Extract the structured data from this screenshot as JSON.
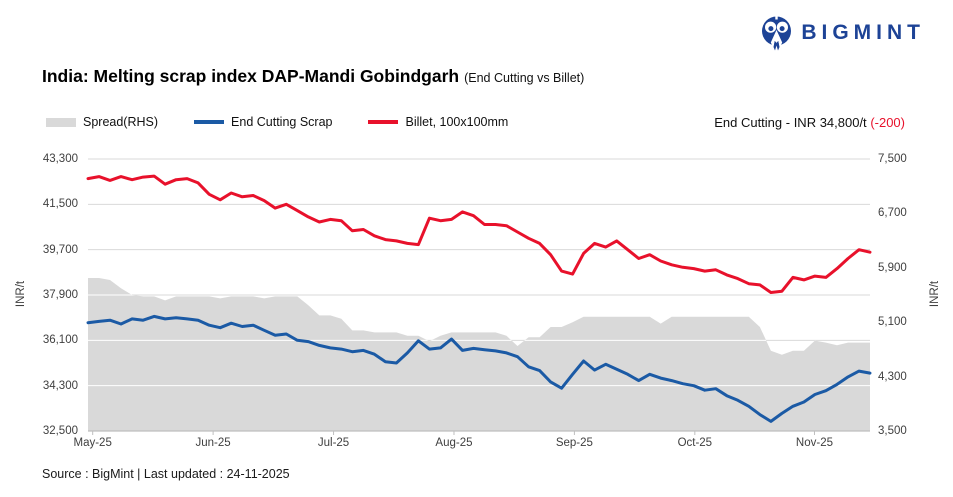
{
  "header": {
    "logo_text": "BIGMINT",
    "brand_color": "#1d4396"
  },
  "title": {
    "main": "India: Melting scrap index DAP-Mandi Gobindgarh",
    "sub": "(End Cutting vs Billet)"
  },
  "annotation": {
    "label": "End Cutting - INR 34,800/t",
    "change": "(-200)",
    "change_color": "#e8112b"
  },
  "footer": {
    "source": "Source : BigMint | Last updated : 24-11-2025"
  },
  "chart_data": {
    "type": "line",
    "title": "India: Melting scrap index DAP-Mandi Gobindgarh (End Cutting vs Billet)",
    "grid": true,
    "legend_position": "top-left",
    "gridline_color": "#d9d9d9",
    "axisline_color": "#bfbfbf",
    "left_axis": {
      "label": "INR/t",
      "min": 32500,
      "max": 43300,
      "ticks": [
        "43,300",
        "41,500",
        "39,700",
        "37,900",
        "36,100",
        "34,300",
        "32,500"
      ]
    },
    "right_axis": {
      "label": "INR/t",
      "min": 3500,
      "max": 7500,
      "ticks": [
        "7,500",
        "6,700",
        "5,900",
        "5,100",
        "4,300",
        "3,500"
      ]
    },
    "x_ticks": {
      "labels": [
        "May-25",
        "Jun-25",
        "Jul-25",
        "Aug-25",
        "Sep-25",
        "Oct-25",
        "Nov-25"
      ],
      "positions": [
        0.006,
        0.16,
        0.314,
        0.468,
        0.622,
        0.776,
        0.929
      ]
    },
    "series": [
      {
        "name": "Spread(RHS)",
        "type": "area",
        "axis": "right",
        "color": "#d9d9d9",
        "values": [
          5750,
          5750,
          5720,
          5600,
          5500,
          5480,
          5480,
          5420,
          5480,
          5480,
          5480,
          5480,
          5450,
          5480,
          5480,
          5480,
          5450,
          5480,
          5480,
          5480,
          5350,
          5200,
          5200,
          5150,
          4980,
          4980,
          4950,
          4950,
          4950,
          4900,
          4900,
          4820,
          4900,
          4950,
          4950,
          4950,
          4950,
          4950,
          4900,
          4750,
          4880,
          4880,
          5030,
          5030,
          5100,
          5180,
          5180,
          5180,
          5180,
          5180,
          5180,
          5180,
          5080,
          5180,
          5180,
          5180,
          5180,
          5180,
          5180,
          5180,
          5180,
          5030,
          4680,
          4620,
          4680,
          4680,
          4830,
          4800,
          4760,
          4800,
          4800,
          4800
        ]
      },
      {
        "name": "End Cutting Scrap",
        "type": "line",
        "axis": "left",
        "color": "#1b5aa5",
        "values": [
          36800,
          36850,
          36900,
          36750,
          36950,
          36900,
          37050,
          36950,
          37000,
          36950,
          36900,
          36700,
          36600,
          36780,
          36650,
          36700,
          36500,
          36300,
          36350,
          36100,
          36050,
          35900,
          35800,
          35750,
          35650,
          35700,
          35550,
          35250,
          35200,
          35600,
          36080,
          35750,
          35800,
          36150,
          35700,
          35780,
          35730,
          35680,
          35600,
          35450,
          35050,
          34900,
          34450,
          34200,
          34750,
          35280,
          34920,
          35150,
          34950,
          34750,
          34500,
          34750,
          34600,
          34500,
          34380,
          34300,
          34120,
          34180,
          33900,
          33720,
          33480,
          33150,
          32880,
          33200,
          33480,
          33650,
          33950,
          34100,
          34350,
          34650,
          34880,
          34800
        ]
      },
      {
        "name": "Billet, 100x100mm",
        "type": "line",
        "axis": "left",
        "color": "#e8112b",
        "values": [
          42520,
          42600,
          42450,
          42600,
          42480,
          42580,
          42620,
          42300,
          42480,
          42520,
          42350,
          41900,
          41680,
          41950,
          41800,
          41850,
          41650,
          41350,
          41500,
          41250,
          41000,
          40800,
          40900,
          40850,
          40450,
          40500,
          40250,
          40100,
          40050,
          39950,
          39900,
          40950,
          40850,
          40900,
          41200,
          41050,
          40700,
          40700,
          40650,
          40400,
          40150,
          39950,
          39500,
          38850,
          38730,
          39550,
          39950,
          39800,
          40050,
          39700,
          39350,
          39500,
          39250,
          39100,
          39000,
          38950,
          38850,
          38900,
          38700,
          38550,
          38350,
          38300,
          38000,
          38050,
          38600,
          38500,
          38650,
          38600,
          38950,
          39350,
          39700,
          39600
        ]
      }
    ]
  }
}
